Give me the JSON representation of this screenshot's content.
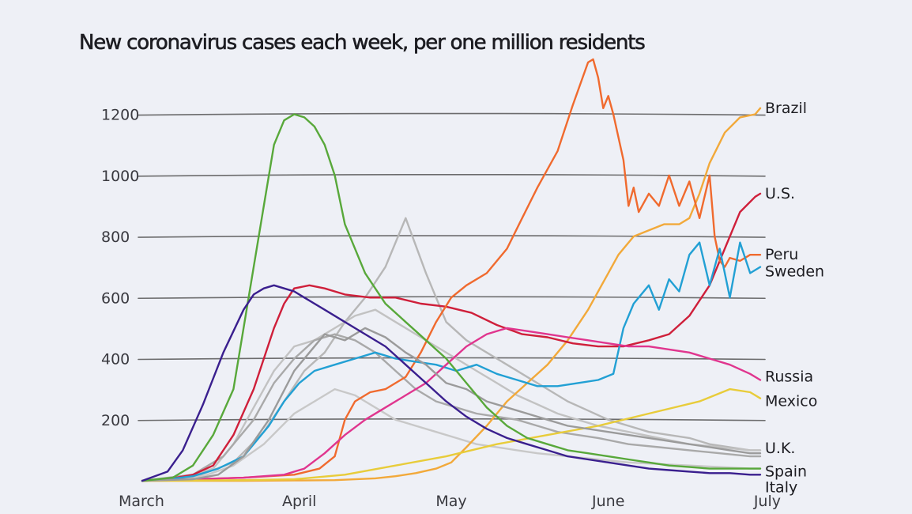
{
  "chart_data": {
    "type": "line",
    "title": "New coronavirus cases each week, per one million residents",
    "xlabel": "",
    "ylabel": "",
    "x_range": [
      0,
      122
    ],
    "ylim": [
      0,
      1380
    ],
    "y_ticks": [
      200,
      400,
      600,
      800,
      1000,
      1200
    ],
    "y_tick_labels": [
      "200",
      "400",
      "600",
      "800",
      "1000",
      "1200"
    ],
    "x_ticks": [
      {
        "label": "March",
        "day": 0
      },
      {
        "label": "April",
        "day": 31
      },
      {
        "label": "May",
        "day": 61
      },
      {
        "label": "June",
        "day": 92
      },
      {
        "label": "July",
        "day": 122
      }
    ],
    "grid": true,
    "series": [
      {
        "name": "Brazil",
        "color": "#f2a93a",
        "labeled": true,
        "label_offset_y": 0,
        "x": [
          0,
          20,
          30,
          38,
          42,
          46,
          50,
          54,
          58,
          61,
          64,
          68,
          72,
          76,
          80,
          84,
          88,
          92,
          94,
          97,
          100,
          103,
          106,
          108,
          110,
          112,
          115,
          118,
          121,
          122
        ],
        "y": [
          0,
          0,
          1,
          2,
          5,
          8,
          15,
          25,
          40,
          60,
          110,
          180,
          260,
          320,
          380,
          460,
          560,
          680,
          740,
          800,
          820,
          840,
          840,
          860,
          940,
          1040,
          1140,
          1190,
          1200,
          1220
        ]
      },
      {
        "name": "U.S.",
        "color": "#cf1f3a",
        "labeled": true,
        "label_offset_y": 0,
        "x": [
          0,
          5,
          10,
          14,
          18,
          22,
          26,
          28,
          30,
          33,
          36,
          40,
          45,
          50,
          55,
          60,
          65,
          70,
          75,
          80,
          85,
          90,
          95,
          100,
          104,
          108,
          112,
          115,
          118,
          121,
          122
        ],
        "y": [
          0,
          5,
          20,
          50,
          150,
          300,
          500,
          580,
          630,
          640,
          630,
          610,
          600,
          600,
          580,
          570,
          550,
          510,
          480,
          470,
          450,
          440,
          440,
          460,
          480,
          540,
          640,
          760,
          880,
          930,
          940
        ]
      },
      {
        "name": "Peru",
        "color": "#f06a2e",
        "labeled": true,
        "label_offset_y": 0,
        "x": [
          0,
          20,
          30,
          35,
          38,
          40,
          42,
          45,
          48,
          52,
          55,
          58,
          61,
          64,
          68,
          72,
          75,
          78,
          82,
          85,
          88,
          89,
          90,
          91,
          92,
          93,
          95,
          96,
          97,
          98,
          100,
          102,
          104,
          106,
          108,
          110,
          112,
          113,
          114,
          115,
          116,
          118,
          120,
          122
        ],
        "y": [
          0,
          10,
          20,
          40,
          80,
          200,
          260,
          290,
          300,
          340,
          420,
          520,
          600,
          640,
          680,
          760,
          860,
          960,
          1080,
          1230,
          1370,
          1380,
          1320,
          1220,
          1260,
          1200,
          1050,
          900,
          960,
          880,
          940,
          900,
          1000,
          900,
          980,
          860,
          1000,
          800,
          720,
          700,
          730,
          720,
          740,
          740
        ]
      },
      {
        "name": "Sweden",
        "color": "#22a0d4",
        "labeled": true,
        "label_offset_y": 6,
        "x": [
          0,
          5,
          10,
          15,
          20,
          25,
          28,
          31,
          34,
          38,
          42,
          46,
          50,
          54,
          58,
          62,
          66,
          70,
          74,
          78,
          82,
          86,
          90,
          93,
          95,
          97,
          100,
          102,
          104,
          106,
          108,
          110,
          112,
          114,
          116,
          118,
          120,
          122
        ],
        "y": [
          0,
          5,
          15,
          40,
          80,
          180,
          260,
          320,
          360,
          380,
          400,
          420,
          400,
          390,
          380,
          360,
          380,
          350,
          330,
          310,
          310,
          320,
          330,
          350,
          500,
          580,
          640,
          560,
          660,
          620,
          740,
          780,
          640,
          760,
          600,
          780,
          680,
          700
        ]
      },
      {
        "name": "Russia",
        "color": "#e0358e",
        "labeled": true,
        "label_offset_y": -4,
        "x": [
          0,
          10,
          20,
          28,
          32,
          36,
          40,
          44,
          48,
          52,
          56,
          60,
          64,
          68,
          72,
          76,
          80,
          84,
          88,
          92,
          96,
          100,
          104,
          108,
          112,
          116,
          120,
          122
        ],
        "y": [
          0,
          5,
          10,
          20,
          40,
          90,
          150,
          200,
          240,
          280,
          320,
          380,
          440,
          480,
          500,
          490,
          480,
          470,
          460,
          450,
          440,
          440,
          430,
          420,
          400,
          380,
          350,
          330
        ]
      },
      {
        "name": "Mexico",
        "color": "#e8cc3a",
        "labeled": true,
        "label_offset_y": 4,
        "x": [
          0,
          20,
          30,
          40,
          50,
          60,
          70,
          80,
          90,
          100,
          110,
          116,
          120,
          122
        ],
        "y": [
          0,
          2,
          5,
          20,
          50,
          80,
          120,
          150,
          180,
          220,
          260,
          300,
          290,
          270
        ]
      },
      {
        "name": "U.K.",
        "color": "#9b9b9b",
        "labeled": true,
        "label_offset_y": -6,
        "x": [
          0,
          10,
          15,
          20,
          25,
          30,
          33,
          36,
          40,
          44,
          48,
          52,
          56,
          60,
          64,
          68,
          72,
          76,
          80,
          84,
          88,
          92,
          96,
          100,
          104,
          108,
          112,
          116,
          120,
          122
        ],
        "y": [
          0,
          5,
          20,
          80,
          200,
          360,
          420,
          480,
          460,
          500,
          470,
          420,
          380,
          320,
          300,
          260,
          240,
          220,
          200,
          180,
          170,
          160,
          150,
          140,
          130,
          120,
          110,
          100,
          90,
          90
        ]
      },
      {
        "name": "Spain",
        "color": "#58a83a",
        "labeled": true,
        "label_offset_y": 4,
        "x": [
          0,
          6,
          10,
          14,
          18,
          20,
          22,
          24,
          26,
          28,
          30,
          32,
          34,
          36,
          38,
          40,
          44,
          48,
          52,
          56,
          60,
          64,
          68,
          72,
          76,
          80,
          84,
          88,
          92,
          96,
          100,
          104,
          108,
          112,
          116,
          120,
          122
        ],
        "y": [
          0,
          10,
          50,
          150,
          300,
          500,
          700,
          900,
          1100,
          1180,
          1200,
          1190,
          1160,
          1100,
          1000,
          840,
          680,
          580,
          520,
          460,
          400,
          320,
          240,
          180,
          140,
          120,
          100,
          90,
          80,
          70,
          60,
          50,
          45,
          40,
          40,
          40,
          40
        ]
      },
      {
        "name": "Italy",
        "color": "#3a1f8e",
        "labeled": true,
        "label_offset_y": 14,
        "x": [
          0,
          5,
          8,
          12,
          16,
          20,
          22,
          24,
          26,
          28,
          30,
          32,
          36,
          40,
          44,
          48,
          52,
          56,
          60,
          64,
          68,
          72,
          76,
          80,
          84,
          88,
          92,
          96,
          100,
          104,
          108,
          112,
          116,
          120,
          122
        ],
        "y": [
          0,
          30,
          100,
          250,
          420,
          560,
          610,
          630,
          640,
          630,
          620,
          600,
          560,
          520,
          480,
          440,
          380,
          320,
          260,
          210,
          170,
          140,
          120,
          100,
          80,
          70,
          60,
          50,
          40,
          35,
          30,
          25,
          25,
          20,
          20
        ]
      },
      {
        "name": "",
        "color": "#b7b7b7",
        "labeled": false,
        "label_offset_y": 0,
        "x": [
          0,
          10,
          18,
          24,
          28,
          32,
          36,
          40,
          44,
          48,
          52,
          56,
          60,
          64,
          68,
          72,
          76,
          80,
          84,
          88,
          92,
          96,
          100,
          104,
          108,
          112,
          116,
          120,
          122
        ],
        "y": [
          0,
          10,
          60,
          160,
          260,
          360,
          420,
          520,
          600,
          700,
          860,
          680,
          520,
          460,
          420,
          380,
          340,
          300,
          260,
          230,
          200,
          180,
          160,
          150,
          140,
          120,
          110,
          100,
          100
        ]
      },
      {
        "name": "",
        "color": "#c2c2c2",
        "labeled": false,
        "label_offset_y": 0,
        "x": [
          0,
          8,
          14,
          18,
          22,
          26,
          30,
          34,
          38,
          42,
          46,
          50,
          54,
          58,
          62,
          66,
          70,
          74,
          78,
          82,
          86,
          90,
          96,
          102,
          108,
          114,
          120,
          122
        ],
        "y": [
          0,
          10,
          40,
          120,
          240,
          360,
          440,
          460,
          500,
          540,
          560,
          520,
          480,
          440,
          400,
          360,
          320,
          280,
          250,
          220,
          200,
          180,
          160,
          140,
          120,
          110,
          100,
          100
        ]
      },
      {
        "name": "",
        "color": "#a9a9a9",
        "labeled": false,
        "label_offset_y": 0,
        "x": [
          0,
          10,
          16,
          22,
          26,
          30,
          34,
          38,
          42,
          46,
          50,
          54,
          58,
          62,
          66,
          70,
          74,
          78,
          82,
          86,
          90,
          96,
          102,
          108,
          114,
          120,
          122
        ],
        "y": [
          0,
          20,
          80,
          200,
          320,
          400,
          460,
          480,
          460,
          420,
          360,
          300,
          260,
          240,
          220,
          210,
          200,
          180,
          160,
          150,
          140,
          120,
          110,
          100,
          90,
          80,
          80
        ]
      },
      {
        "name": "",
        "color": "#c8c8c8",
        "labeled": false,
        "label_offset_y": 0,
        "x": [
          0,
          12,
          18,
          24,
          30,
          34,
          38,
          42,
          46,
          50,
          54,
          58,
          62,
          66,
          70,
          74,
          78,
          84,
          90,
          96,
          102,
          108,
          114,
          120,
          122
        ],
        "y": [
          0,
          15,
          50,
          120,
          220,
          260,
          300,
          280,
          240,
          200,
          180,
          160,
          140,
          120,
          110,
          100,
          90,
          80,
          70,
          60,
          55,
          50,
          45,
          40,
          40
        ]
      }
    ]
  }
}
